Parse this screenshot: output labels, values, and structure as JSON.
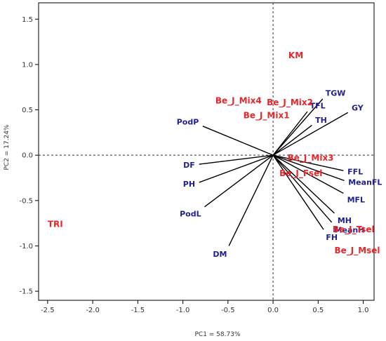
{
  "chart_data": {
    "type": "biplot",
    "xlabel": "PC1 = 58.73%",
    "ylabel": "PC2 = 17.24%",
    "xlim": [
      -2.6,
      1.12
    ],
    "ylim": [
      -1.6,
      1.68
    ],
    "xticks": [
      -2.5,
      -2.0,
      -1.5,
      -1.0,
      -0.5,
      0.0,
      0.5,
      1.0
    ],
    "xtick_labels": [
      "-2.5",
      "-2.0",
      "-1.5",
      "-1.0",
      "-0.5",
      "0.0",
      "0.5",
      "1.0"
    ],
    "yticks": [
      -1.5,
      -1.0,
      -0.5,
      0.0,
      0.5,
      1.0,
      1.5
    ],
    "ytick_labels": [
      "-1.5",
      "-1.0",
      "-0.5",
      "0.0",
      "0.5",
      "1.0",
      "1.5"
    ],
    "reference_lines": {
      "x": 0.0,
      "y": 0.0,
      "style": "dashed"
    },
    "vectors_color": "#1f1f8f",
    "observations_color": "#e8262b",
    "vectors": [
      {
        "label": "TGW",
        "x": 0.55,
        "y": 0.62
      },
      {
        "label": "GY",
        "x": 0.83,
        "y": 0.47
      },
      {
        "label": "TFL",
        "x": 0.38,
        "y": 0.48
      },
      {
        "label": "TH",
        "x": 0.43,
        "y": 0.33
      },
      {
        "label": "PodP",
        "x": -0.78,
        "y": 0.32
      },
      {
        "label": "DF",
        "x": -0.82,
        "y": -0.1
      },
      {
        "label": "PH",
        "x": -0.82,
        "y": -0.3
      },
      {
        "label": "PodL",
        "x": -0.76,
        "y": -0.57
      },
      {
        "label": "DM",
        "x": -0.49,
        "y": -1.0
      },
      {
        "label": "FFL",
        "x": 0.78,
        "y": -0.17
      },
      {
        "label": "MeanFL",
        "x": 0.79,
        "y": -0.28
      },
      {
        "label": "MFL",
        "x": 0.78,
        "y": -0.42
      },
      {
        "label": "MH",
        "x": 0.68,
        "y": -0.64
      },
      {
        "label": "MeanH",
        "x": 0.65,
        "y": -0.74
      },
      {
        "label": "FH",
        "x": 0.56,
        "y": -0.82
      }
    ],
    "observations": [
      {
        "label": "KM",
        "x": 0.17,
        "y": 1.1
      },
      {
        "label": "Be_J_Mix4",
        "x": -0.64,
        "y": 0.6
      },
      {
        "label": "Be_J_Mix2",
        "x": -0.07,
        "y": 0.58
      },
      {
        "label": "Be_J_Mix1",
        "x": -0.33,
        "y": 0.44
      },
      {
        "label": "Be_J_Mix3",
        "x": 0.16,
        "y": -0.03
      },
      {
        "label": "Be_J_Fsel",
        "x": 0.07,
        "y": -0.2
      },
      {
        "label": "Be_J_Tsel",
        "x": 0.66,
        "y": -0.82
      },
      {
        "label": "Be_J_Msel",
        "x": 0.68,
        "y": -1.05
      },
      {
        "label": "TRI",
        "x": -2.5,
        "y": -0.76
      }
    ]
  }
}
